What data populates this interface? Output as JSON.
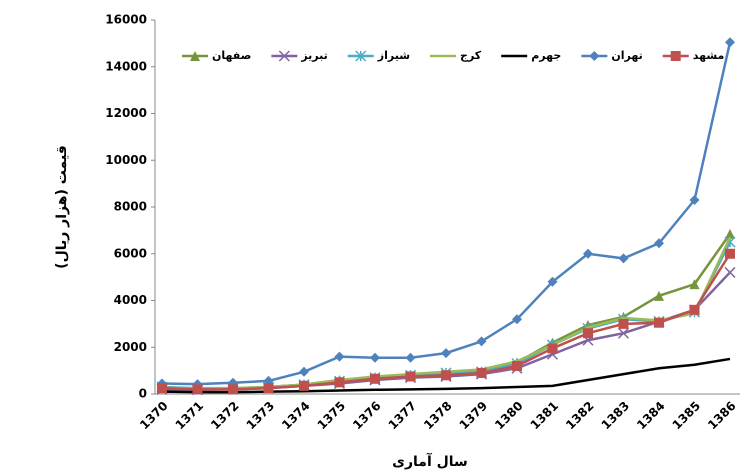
{
  "chart_data": {
    "type": "line",
    "y_label": "قیمت (هزار ریال)",
    "x_label": "سال آماری",
    "categories": [
      "1370",
      "1371",
      "1372",
      "1373",
      "1374",
      "1375",
      "1376",
      "1377",
      "1378",
      "1379",
      "1380",
      "1381",
      "1382",
      "1383",
      "1384",
      "1385",
      "1386"
    ],
    "ylim": [
      0,
      16000
    ],
    "yticks": [
      0,
      2000,
      4000,
      6000,
      8000,
      10000,
      12000,
      14000,
      16000
    ],
    "series": [
      {
        "name": "صفهان",
        "color": "#77933c",
        "marker": "triangle",
        "values": [
          250,
          200,
          220,
          300,
          400,
          600,
          700,
          800,
          850,
          950,
          1350,
          2200,
          2950,
          3300,
          4200,
          4700,
          6850
        ]
      },
      {
        "name": "تبریز",
        "color": "#8064a2",
        "marker": "cross",
        "values": [
          200,
          180,
          200,
          250,
          350,
          450,
          600,
          700,
          750,
          850,
          1100,
          1700,
          2300,
          2600,
          3100,
          3600,
          5200
        ]
      },
      {
        "name": "شیراز",
        "color": "#4bacc6",
        "marker": "star",
        "values": [
          300,
          250,
          250,
          300,
          400,
          550,
          700,
          800,
          900,
          950,
          1300,
          2100,
          2800,
          3200,
          3100,
          3500,
          6500
        ]
      },
      {
        "name": "کرج",
        "color": "#9bbb59",
        "marker": "none",
        "values": [
          280,
          230,
          250,
          300,
          400,
          600,
          750,
          850,
          950,
          1050,
          1400,
          2100,
          2850,
          3250,
          3150,
          3450,
          6700
        ]
      },
      {
        "name": "جهرم",
        "color": "#000000",
        "marker": "none",
        "values": [
          100,
          80,
          80,
          100,
          120,
          150,
          180,
          200,
          220,
          250,
          300,
          350,
          600,
          850,
          1100,
          1250,
          1500
        ]
      },
      {
        "name": "تهران",
        "color": "#4f81bd",
        "marker": "diamond",
        "values": [
          450,
          420,
          480,
          560,
          950,
          1600,
          1550,
          1550,
          1750,
          2250,
          3200,
          4800,
          6000,
          5800,
          6450,
          8300,
          15050
        ]
      },
      {
        "name": "مشهد",
        "color": "#c0504d",
        "marker": "square",
        "values": [
          250,
          200,
          200,
          250,
          350,
          500,
          650,
          750,
          800,
          900,
          1200,
          1950,
          2600,
          3000,
          3050,
          3600,
          6000
        ]
      }
    ]
  }
}
